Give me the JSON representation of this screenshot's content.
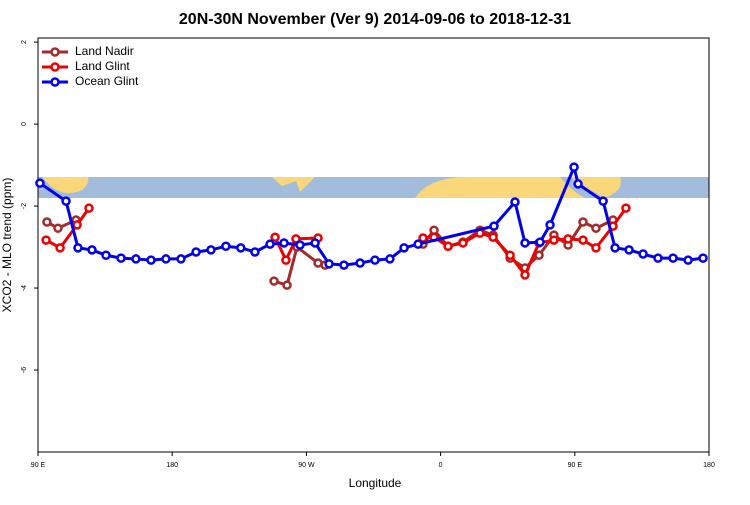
{
  "chart_data": {
    "type": "line",
    "title": "20N-30N November (Ver 9)   2014-09-06 to 2018-12-31",
    "x_label": "Longitude",
    "y_label": "XCO2 - MLO trend (ppm)",
    "xlim": [
      90,
      540
    ],
    "xticks": [
      {
        "value": 90,
        "label": "90 E"
      },
      {
        "value": 180,
        "label": "180"
      },
      {
        "value": 270,
        "label": "90 W"
      },
      {
        "value": 360,
        "label": "0"
      },
      {
        "value": 450,
        "label": "90 E"
      },
      {
        "value": 540,
        "label": "180"
      }
    ],
    "ylim": [
      -8,
      2.1
    ],
    "yticks": [
      2,
      0,
      -2,
      -4,
      -6
    ],
    "legend": "top-left",
    "series": [
      {
        "name": "Land Nadir",
        "color": "#a52a2a",
        "x": [
          96,
          103.4,
          115.5,
          null,
          248.3,
          257,
          263.7,
          277.8,
          282.5,
          null,
          348.2,
          355.6,
          365,
          375,
          386.4,
          395.2,
          406.6,
          416.6,
          426,
          436,
          445.5,
          455.5,
          464.2,
          475.6
        ],
        "values": [
          -2.39,
          -2.54,
          -2.34,
          null,
          -3.83,
          -3.93,
          -3.0,
          -3.39,
          -3.44,
          null,
          -2.93,
          -2.59,
          -2.98,
          -2.88,
          -2.59,
          -2.71,
          -3.27,
          -3.51,
          -3.2,
          -2.71,
          -2.95,
          -2.39,
          -2.54,
          -2.34
        ]
      },
      {
        "name": "Land Glint",
        "color": "#ee0000",
        "x": [
          95.4,
          104.8,
          116.2,
          124.2,
          null,
          249,
          256.3,
          263,
          277.8,
          null,
          348.2,
          355.6,
          365,
          375,
          386.4,
          395.2,
          406.6,
          416.6,
          426,
          436,
          445.5,
          455.5,
          464.2,
          475.6,
          484.3
        ],
        "values": [
          -2.83,
          -3.02,
          -2.46,
          -2.05,
          null,
          -2.76,
          -3.32,
          -2.8,
          -2.78,
          null,
          -2.78,
          -2.76,
          -2.98,
          -2.9,
          -2.66,
          -2.76,
          -3.2,
          -3.68,
          -2.9,
          -2.83,
          -2.8,
          -2.83,
          -3.02,
          -2.49,
          -2.05
        ]
      },
      {
        "name": "Ocean Glint",
        "color": "#0000ee",
        "x": [
          91.3,
          108.8,
          116.8,
          126.2,
          135.6,
          145.7,
          155.7,
          165.8,
          175.8,
          185.9,
          196,
          206,
          216,
          226,
          235.5,
          245.6,
          255,
          265.7,
          275.8,
          285.2,
          295.2,
          306,
          316,
          326,
          335.5,
          344.9,
          395.8,
          409.9,
          416.6,
          426.7,
          433.4,
          449.5,
          452.2,
          469,
          477,
          486.4,
          495.8,
          505.8,
          515.9,
          526,
          536
        ],
        "values": [
          -1.44,
          -1.88,
          -3.02,
          -3.07,
          -3.2,
          -3.27,
          -3.29,
          -3.32,
          -3.29,
          -3.29,
          -3.12,
          -3.07,
          -2.98,
          -3.02,
          -3.12,
          -2.93,
          -2.9,
          -2.95,
          -2.9,
          -3.41,
          -3.44,
          -3.39,
          -3.32,
          -3.29,
          -3.02,
          -2.93,
          -2.49,
          -1.9,
          -2.9,
          -2.88,
          -2.46,
          -1.05,
          -1.46,
          -1.88,
          -3.02,
          -3.07,
          -3.17,
          -3.27,
          -3.27,
          -3.32,
          -3.27
        ]
      }
    ]
  }
}
